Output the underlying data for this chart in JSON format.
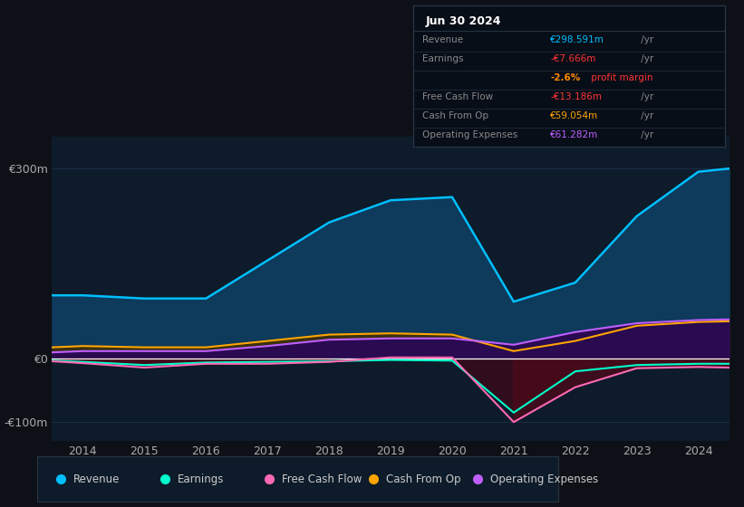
{
  "bg_color": "#0d1117",
  "plot_bg_color": "#0d1b2a",
  "years": [
    2013.5,
    2014,
    2015,
    2016,
    2017,
    2018,
    2019,
    2020,
    2021,
    2022,
    2023,
    2024,
    2024.5
  ],
  "revenue": [
    100,
    100,
    95,
    95,
    155,
    215,
    250,
    255,
    90,
    120,
    225,
    295,
    300
  ],
  "earnings": [
    -3,
    -5,
    -10,
    -6,
    -5,
    -4,
    -2,
    -3,
    -85,
    -20,
    -10,
    -8,
    -8
  ],
  "free_cash_flow": [
    -4,
    -7,
    -14,
    -8,
    -8,
    -5,
    2,
    2,
    -100,
    -45,
    -15,
    -13,
    -14
  ],
  "cash_from_op": [
    18,
    20,
    18,
    18,
    28,
    38,
    40,
    38,
    12,
    28,
    52,
    58,
    59
  ],
  "operating_expenses": [
    10,
    12,
    12,
    12,
    20,
    30,
    32,
    32,
    22,
    42,
    56,
    61,
    62
  ],
  "revenue_color": "#00bfff",
  "earnings_color": "#00ffcc",
  "free_cash_flow_color": "#ff69b4",
  "cash_from_op_color": "#ffa500",
  "operating_expenses_color": "#bf5fff",
  "revenue_fill_color": "#0e3a5c",
  "cash_from_op_fill_color": "#3a3010",
  "operating_expenses_fill_color": "#2a0a50",
  "earnings_fill_pos_color": "#0a2a1a",
  "earnings_fill_neg_color": "#3a0a1a",
  "fcf_fill_pos_color": "#0a2a1a",
  "fcf_fill_neg_color": "#4a0a1a",
  "ylim_min": -130,
  "ylim_max": 350,
  "yticks": [
    -100,
    0,
    300
  ],
  "ytick_labels": [
    "-€100m",
    "€0",
    "€300m"
  ],
  "xticks": [
    2014,
    2015,
    2016,
    2017,
    2018,
    2019,
    2020,
    2021,
    2022,
    2023,
    2024
  ],
  "grid_color": "#1e3048",
  "zero_line_color": "#ffffff",
  "info_box_title": "Jun 30 2024",
  "info_box_bg": "#080e18",
  "info_box_border": "#2a3a4a",
  "legend_bg": "#0d1b2a",
  "legend_border": "#2a3540",
  "legend": [
    {
      "label": "Revenue",
      "color": "#00bfff"
    },
    {
      "label": "Earnings",
      "color": "#00ffcc"
    },
    {
      "label": "Free Cash Flow",
      "color": "#ff69b4"
    },
    {
      "label": "Cash From Op",
      "color": "#ffa500"
    },
    {
      "label": "Operating Expenses",
      "color": "#bf5fff"
    }
  ]
}
